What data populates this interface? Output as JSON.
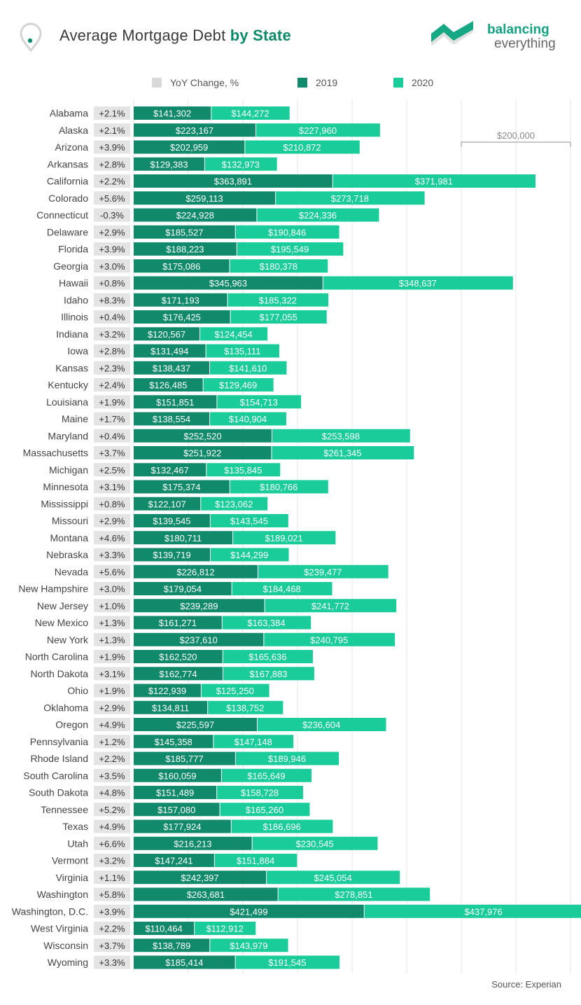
{
  "header": {
    "title_prefix": "Average Mortgage Debt",
    "title_bold": "by State",
    "brand_name": "balancing",
    "brand_sub": "everything"
  },
  "legend": {
    "yoy": "YoY Change, %",
    "y2019": "2019",
    "y2020": "2020"
  },
  "scale_label": "$200,000",
  "source": "Source: Experian",
  "colors": {
    "dark": "#118a6b",
    "light": "#19cc9a",
    "yoy_bg": "#e4e4e4",
    "grid": "#e6e6e6",
    "title_accent": "#0e8a6a"
  },
  "chart_data": {
    "type": "bar",
    "stacked": true,
    "orientation": "horizontal",
    "grid": true,
    "categories": [
      "Alabama",
      "Alaska",
      "Arizona",
      "Arkansas",
      "California",
      "Colorado",
      "Connecticut",
      "Delaware",
      "Florida",
      "Georgia",
      "Hawaii",
      "Idaho",
      "Illinois",
      "Indiana",
      "Iowa",
      "Kansas",
      "Kentucky",
      "Louisiana",
      "Maine",
      "Maryland",
      "Massachusetts",
      "Michigan",
      "Minnesota",
      "Mississippi",
      "Missouri",
      "Montana",
      "Nebraska",
      "Nevada",
      "New Hampshire",
      "New Jersey",
      "New Mexico",
      "New York",
      "North Carolina",
      "North Dakota",
      "Ohio",
      "Oklahoma",
      "Oregon",
      "Pennsylvania",
      "Rhode Island",
      "South Carolina",
      "South Dakota",
      "Tennessee",
      "Texas",
      "Utah",
      "Vermont",
      "Virginia",
      "Washington",
      "Washington, D.C.",
      "West Virginia",
      "Wisconsin",
      "Wyoming"
    ],
    "yoy_change": [
      "+2.1%",
      "+2.1%",
      "+3.9%",
      "+2.8%",
      "+2.2%",
      "+5.6%",
      "-0.3%",
      "+2.9%",
      "+3.9%",
      "+3.0%",
      "+0.8%",
      "+8.3%",
      "+0.4%",
      "+3.2%",
      "+2.8%",
      "+2.3%",
      "+2.4%",
      "+1.9%",
      "+1.7%",
      "+0.4%",
      "+3.7%",
      "+2.5%",
      "+3.1%",
      "+0.8%",
      "+2.9%",
      "+4.6%",
      "+3.3%",
      "+5.6%",
      "+3.0%",
      "+1.0%",
      "+1.3%",
      "+1.3%",
      "+1.9%",
      "+3.1%",
      "+1.9%",
      "+2.9%",
      "+4.9%",
      "+1.2%",
      "+2.2%",
      "+3.5%",
      "+4.8%",
      "+5.2%",
      "+4.9%",
      "+6.6%",
      "+3.2%",
      "+1.1%",
      "+5.8%",
      "+3.9%",
      "+2.2%",
      "+3.7%",
      "+3.3%"
    ],
    "series": [
      {
        "name": "2019",
        "values": [
          141302,
          223167,
          202959,
          129383,
          363891,
          259113,
          224928,
          185527,
          188223,
          175086,
          345963,
          171193,
          176425,
          120567,
          131494,
          138437,
          126485,
          151851,
          138554,
          252520,
          251922,
          132467,
          175374,
          122107,
          139545,
          180711,
          139719,
          226812,
          179054,
          239289,
          161271,
          237610,
          162520,
          162774,
          122939,
          134811,
          225597,
          145358,
          185777,
          160059,
          151489,
          157080,
          177924,
          216213,
          147241,
          242397,
          263681,
          421499,
          110464,
          138789,
          185414
        ]
      },
      {
        "name": "2020",
        "values": [
          144272,
          227960,
          210872,
          132973,
          371981,
          273718,
          224336,
          190846,
          195549,
          180378,
          348637,
          185322,
          177055,
          124454,
          135111,
          141610,
          129469,
          154713,
          140904,
          253598,
          261345,
          135845,
          180766,
          123062,
          143545,
          189021,
          144299,
          239477,
          184468,
          241772,
          163384,
          240795,
          165636,
          167883,
          125250,
          138752,
          236604,
          147148,
          189946,
          165649,
          158728,
          165260,
          186696,
          230545,
          151884,
          245054,
          278851,
          437976,
          112912,
          143979,
          191545
        ]
      }
    ],
    "labels": [
      [
        "$141,302",
        "$144,272"
      ],
      [
        "$223,167",
        "$227,960"
      ],
      [
        "$202,959",
        "$210,872"
      ],
      [
        "$129,383",
        "$132,973"
      ],
      [
        "$363,891",
        "$371,981"
      ],
      [
        "$259,113",
        "$273,718"
      ],
      [
        "$224,928",
        "$224,336"
      ],
      [
        "$185,527",
        "$190,846"
      ],
      [
        "$188,223",
        "$195,549"
      ],
      [
        "$175,086",
        "$180,378"
      ],
      [
        "$345,963",
        "$348,637"
      ],
      [
        "$171,193",
        "$185,322"
      ],
      [
        "$176,425",
        "$177,055"
      ],
      [
        "$120,567",
        "$124,454"
      ],
      [
        "$131,494",
        "$135,111"
      ],
      [
        "$138,437",
        "$141,610"
      ],
      [
        "$126,485",
        "$129,469"
      ],
      [
        "$151,851",
        "$154,713"
      ],
      [
        "$138,554",
        "$140,904"
      ],
      [
        "$252,520",
        "$253,598"
      ],
      [
        "$251,922",
        "$261,345"
      ],
      [
        "$132,467",
        "$135,845"
      ],
      [
        "$175,374",
        "$180,766"
      ],
      [
        "$122,107",
        "$123,062"
      ],
      [
        "$139,545",
        "$143,545"
      ],
      [
        "$180,711",
        "$189,021"
      ],
      [
        "$139,719",
        "$144,299"
      ],
      [
        "$226,812",
        "$239,477"
      ],
      [
        "$179,054",
        "$184,468"
      ],
      [
        "$239,289",
        "$241,772"
      ],
      [
        "$161,271",
        "$163,384"
      ],
      [
        "$237,610",
        "$240,795"
      ],
      [
        "$162,520",
        "$165,636"
      ],
      [
        "$162,774",
        "$167,883"
      ],
      [
        "$122,939",
        "$125,250"
      ],
      [
        "$134,811",
        "$138,752"
      ],
      [
        "$225,597",
        "$236,604"
      ],
      [
        "$145,358",
        "$147,148"
      ],
      [
        "$185,777",
        "$189,946"
      ],
      [
        "$160,059",
        "$165,649"
      ],
      [
        "$151,489",
        "$158,728"
      ],
      [
        "$157,080",
        "$165,260"
      ],
      [
        "$177,924",
        "$186,696"
      ],
      [
        "$216,213",
        "$230,545"
      ],
      [
        "$147,241",
        "$151,884"
      ],
      [
        "$242,397",
        "$245,054"
      ],
      [
        "$263,681",
        "$278,851"
      ],
      [
        "$421,499",
        "$437,976"
      ],
      [
        "$110,464",
        "$112,912"
      ],
      [
        "$138,789",
        "$143,979"
      ],
      [
        "$185,414",
        "$191,545"
      ]
    ]
  }
}
